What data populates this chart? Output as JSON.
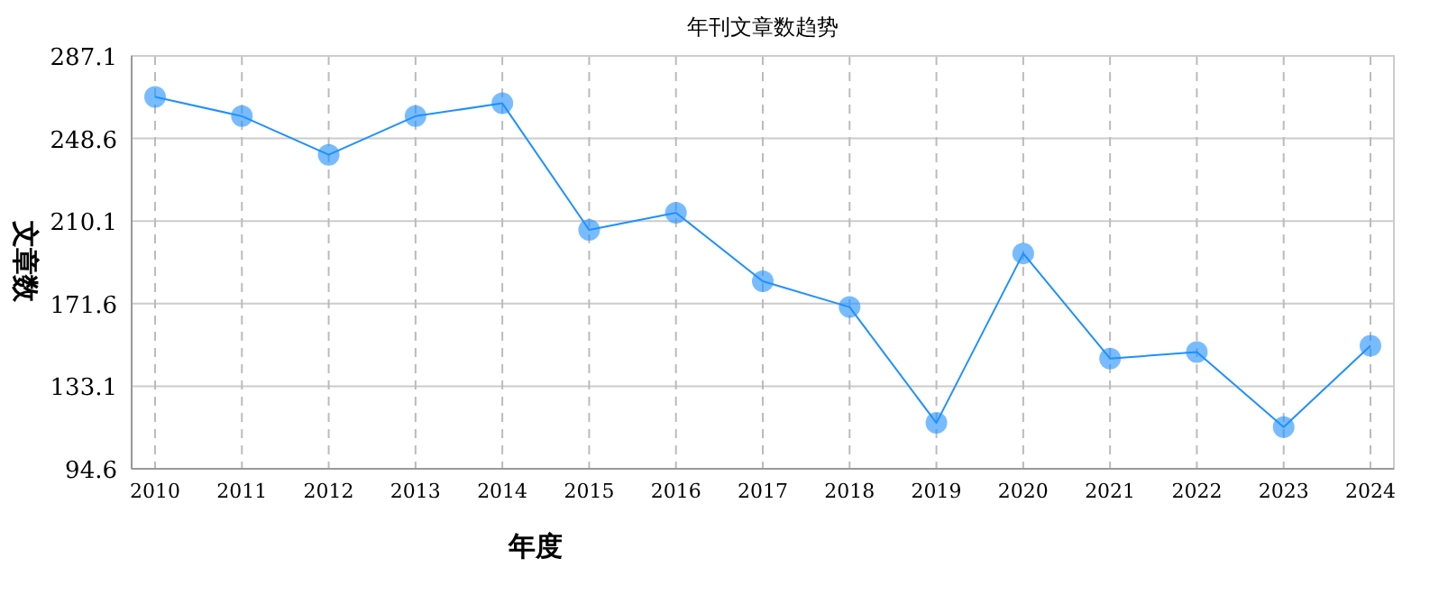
{
  "chart_data": {
    "type": "line",
    "title": "年刊文章数趋势",
    "xlabel": "年度",
    "ylabel": "文章数",
    "categories": [
      "2010",
      "2011",
      "2012",
      "2013",
      "2014",
      "2015",
      "2016",
      "2017",
      "2018",
      "2019",
      "2020",
      "2021",
      "2022",
      "2023",
      "2024"
    ],
    "series": [
      {
        "color": "#1e90ff",
        "values": [
          268,
          259,
          241,
          259,
          265,
          206,
          214,
          182,
          170,
          116,
          195,
          146,
          149,
          114,
          152
        ]
      }
    ],
    "ylim": [
      94.6,
      287.1
    ],
    "yticks": [
      94.6,
      133.1,
      171.6,
      210.1,
      248.6,
      287.1
    ],
    "grid": true,
    "marker": "circle",
    "line_style": "solid"
  }
}
